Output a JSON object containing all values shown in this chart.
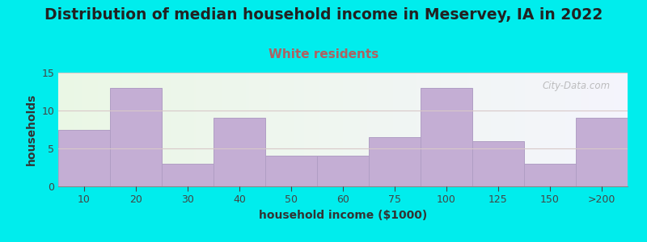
{
  "title": "Distribution of median household income in Meservey, IA in 2022",
  "subtitle": "White residents",
  "xlabel": "household income ($1000)",
  "ylabel": "households",
  "categories": [
    "10",
    "20",
    "30",
    "40",
    "50",
    "60",
    "75",
    "100",
    "125",
    "150",
    ">200"
  ],
  "values": [
    7.5,
    13,
    3,
    9,
    4,
    4,
    6.5,
    13,
    6,
    3,
    9
  ],
  "bar_color": "#c4aed4",
  "bar_edge_color": "#b09ec4",
  "background_color": "#00eded",
  "title_fontsize": 13.5,
  "subtitle_fontsize": 11,
  "subtitle_color": "#b06060",
  "axis_label_fontsize": 10,
  "tick_fontsize": 9,
  "ylim": [
    0,
    15
  ],
  "yticks": [
    0,
    5,
    10,
    15
  ],
  "watermark": "City-Data.com",
  "grid_color": "#d8c8c8"
}
